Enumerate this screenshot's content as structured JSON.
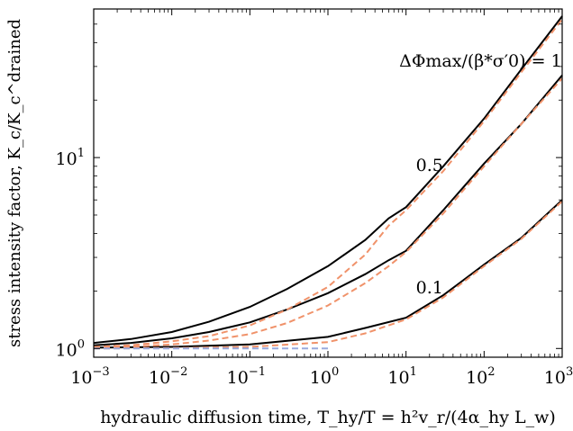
{
  "chart_data": {
    "type": "line",
    "xscale": "log",
    "yscale": "log",
    "xlim": [
      0.001,
      1000
    ],
    "ylim": [
      0.9,
      60
    ],
    "xlabel": "hydraulic diffusion time, T_hy/T = h²v_r/(4α_hy L_w)",
    "ylabel": "stress intensity factor, K_c/K_c^drained",
    "x_ticks": [
      {
        "value": 0.001,
        "base": "10",
        "exp": "−3"
      },
      {
        "value": 0.01,
        "base": "10",
        "exp": "−2"
      },
      {
        "value": 0.1,
        "base": "10",
        "exp": "−1"
      },
      {
        "value": 1,
        "base": "10",
        "exp": "0"
      },
      {
        "value": 10,
        "base": "10",
        "exp": "1"
      },
      {
        "value": 100,
        "base": "10",
        "exp": "2"
      },
      {
        "value": 1000,
        "base": "10",
        "exp": "3"
      }
    ],
    "y_ticks": [
      {
        "value": 1,
        "base": "10",
        "exp": "0"
      },
      {
        "value": 10,
        "base": "10",
        "exp": "1"
      }
    ],
    "annotations": [
      {
        "text": "ΔΦmax/(β*σ′0) = 1",
        "x": 90,
        "y": 30
      },
      {
        "text": "0.5",
        "x": 20,
        "y": 8.5
      },
      {
        "text": "0.1",
        "x": 20,
        "y": 1.95
      }
    ],
    "series": [
      {
        "style": "solid",
        "color": "#000000",
        "points": [
          [
            0.001,
            1.07
          ],
          [
            0.003,
            1.12
          ],
          [
            0.01,
            1.22
          ],
          [
            0.03,
            1.38
          ],
          [
            0.1,
            1.65
          ],
          [
            0.3,
            2.05
          ],
          [
            1,
            2.7
          ],
          [
            3,
            3.7
          ],
          [
            6,
            4.8
          ],
          [
            10,
            5.5
          ],
          [
            30,
            9
          ],
          [
            100,
            16
          ],
          [
            300,
            29
          ],
          [
            1000,
            55
          ]
        ]
      },
      {
        "style": "solid",
        "color": "#000000",
        "points": [
          [
            0.001,
            1.04
          ],
          [
            0.003,
            1.07
          ],
          [
            0.01,
            1.13
          ],
          [
            0.03,
            1.22
          ],
          [
            0.1,
            1.37
          ],
          [
            0.3,
            1.6
          ],
          [
            1,
            1.95
          ],
          [
            3,
            2.45
          ],
          [
            6,
            2.9
          ],
          [
            10,
            3.25
          ],
          [
            30,
            5.3
          ],
          [
            100,
            9.3
          ],
          [
            300,
            15
          ],
          [
            1000,
            27
          ]
        ]
      },
      {
        "style": "solid",
        "color": "#000000",
        "points": [
          [
            0.001,
            1.01
          ],
          [
            0.01,
            1.02
          ],
          [
            0.1,
            1.05
          ],
          [
            1,
            1.15
          ],
          [
            3,
            1.28
          ],
          [
            10,
            1.45
          ],
          [
            30,
            1.9
          ],
          [
            100,
            2.75
          ],
          [
            300,
            3.8
          ],
          [
            1000,
            6
          ]
        ]
      },
      {
        "style": "dashed",
        "color": "#f0926a",
        "points": [
          [
            0.001,
            1.02
          ],
          [
            0.003,
            1.04
          ],
          [
            0.01,
            1.09
          ],
          [
            0.03,
            1.16
          ],
          [
            0.1,
            1.32
          ],
          [
            0.3,
            1.6
          ],
          [
            1,
            2.1
          ],
          [
            3,
            3.1
          ],
          [
            6,
            4.4
          ],
          [
            10,
            5.3
          ],
          [
            30,
            8.5
          ],
          [
            100,
            15.5
          ],
          [
            300,
            28
          ],
          [
            1000,
            53
          ]
        ]
      },
      {
        "style": "dashed",
        "color": "#f0926a",
        "points": [
          [
            0.001,
            1.01
          ],
          [
            0.003,
            1.02
          ],
          [
            0.01,
            1.05
          ],
          [
            0.03,
            1.1
          ],
          [
            0.1,
            1.19
          ],
          [
            0.3,
            1.36
          ],
          [
            1,
            1.68
          ],
          [
            3,
            2.2
          ],
          [
            6,
            2.7
          ],
          [
            10,
            3.2
          ],
          [
            30,
            5.1
          ],
          [
            100,
            9
          ],
          [
            300,
            15
          ],
          [
            1000,
            26
          ]
        ]
      },
      {
        "style": "dashed",
        "color": "#f0926a",
        "points": [
          [
            0.001,
            1.0
          ],
          [
            0.01,
            1.005
          ],
          [
            0.1,
            1.02
          ],
          [
            1,
            1.08
          ],
          [
            3,
            1.2
          ],
          [
            10,
            1.42
          ],
          [
            30,
            1.85
          ],
          [
            100,
            2.7
          ],
          [
            300,
            3.75
          ],
          [
            1000,
            5.9
          ]
        ]
      },
      {
        "style": "dashed",
        "color": "#99aadd",
        "points": [
          [
            0.001,
            1.0
          ],
          [
            1,
            1.0
          ]
        ]
      }
    ]
  }
}
